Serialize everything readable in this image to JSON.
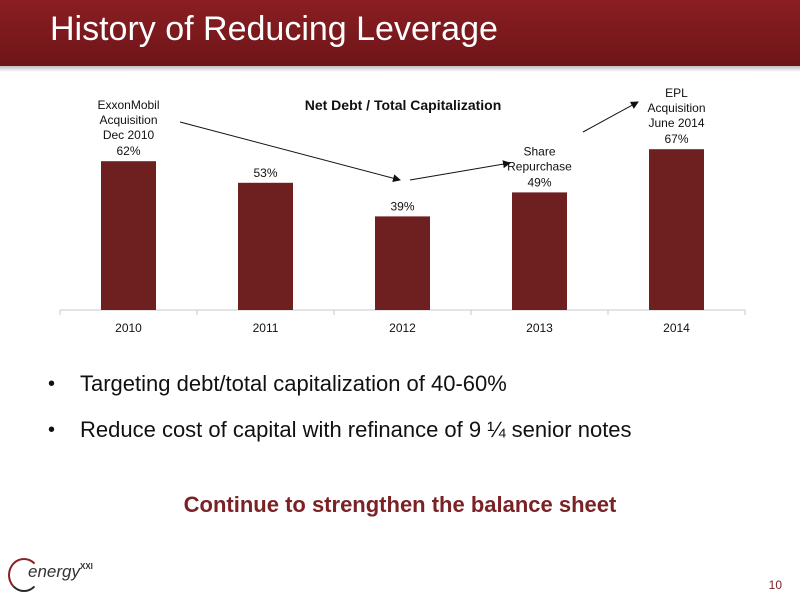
{
  "slide": {
    "title": "History of Reducing Leverage",
    "bullets": [
      "Targeting debt/total capitalization of 40-60%",
      "Reduce cost of capital with refinance of 9 ¼ senior notes"
    ],
    "tagline": "Continue to strengthen the balance sheet",
    "page_number": "10",
    "logo": {
      "text": "energy",
      "superscript": "XXI"
    }
  },
  "colors": {
    "header": "#7b1a1e",
    "bar": "#6e1f20",
    "tagline": "#7b2226"
  },
  "chart_data": {
    "type": "bar",
    "title": "Net Debt / Total Capitalization",
    "categories": [
      "2010",
      "2011",
      "2012",
      "2013",
      "2014"
    ],
    "values": [
      62,
      53,
      39,
      49,
      67
    ],
    "value_labels": [
      "62%",
      "53%",
      "39%",
      "49%",
      "67%"
    ],
    "unit": "%",
    "ylim": [
      0,
      100
    ],
    "grid": false,
    "legend": "none",
    "annotations": [
      {
        "category": "2010",
        "lines": [
          "ExxonMobil",
          "Acquisition",
          "Dec 2010"
        ]
      },
      {
        "category": "2013",
        "lines": [
          "Share",
          "Repurchase"
        ]
      },
      {
        "category": "2014",
        "lines": [
          "EPL",
          "Acquisition",
          "June 2014"
        ]
      }
    ]
  }
}
